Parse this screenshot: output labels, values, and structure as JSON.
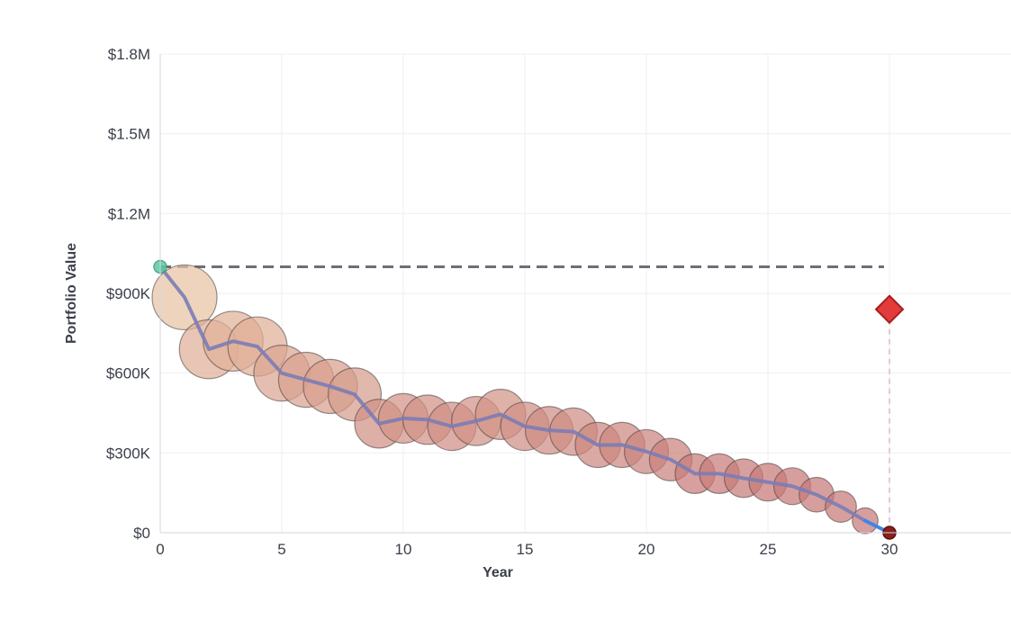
{
  "chart_data": {
    "type": "scatter",
    "title": "",
    "xlabel": "Year",
    "ylabel": "Portfolio Value",
    "xlim": [
      0,
      35
    ],
    "ylim": [
      0,
      1800000
    ],
    "grid": true,
    "x_ticks": [
      "0",
      "5",
      "10",
      "15",
      "20",
      "25",
      "30"
    ],
    "x_tick_values": [
      0,
      5,
      10,
      15,
      20,
      25,
      30
    ],
    "y_ticks": [
      "$0",
      "$300K",
      "$600K",
      "$900K",
      "$1.2M",
      "$1.5M",
      "$1.8M"
    ],
    "y_tick_values": [
      0,
      300000,
      600000,
      900000,
      1200000,
      1500000,
      1800000
    ],
    "reference_value": 1000000,
    "colors": {
      "line": "#7b7cb5",
      "line_end": "#3f86e6",
      "bubble_high": "#e9c3a3",
      "bubble_low": "#c67a78",
      "start_marker": "#5ccaa4",
      "end_marker": "#8b1e1e",
      "diamond": "#e23b3b",
      "reference": "#6b6f78",
      "drop_line": "#e4b6bf"
    },
    "series": [
      {
        "x": [
          1,
          2,
          3,
          4,
          5,
          6,
          7,
          8,
          9,
          10,
          11,
          12,
          13,
          14,
          15,
          16,
          17,
          18,
          19,
          20,
          21,
          22,
          23,
          24,
          25,
          26,
          27,
          28,
          29,
          30
        ],
        "y": [
          885000,
          690000,
          720000,
          700000,
          600000,
          575000,
          550000,
          520000,
          410000,
          430000,
          425000,
          400000,
          420000,
          445000,
          400000,
          385000,
          380000,
          330000,
          330000,
          305000,
          275000,
          222000,
          222000,
          205000,
          190000,
          175000,
          143000,
          98000,
          45000,
          0
        ],
        "size": [
          885000,
          690000,
          720000,
          700000,
          600000,
          575000,
          550000,
          520000,
          410000,
          430000,
          425000,
          400000,
          420000,
          445000,
          400000,
          385000,
          380000,
          330000,
          330000,
          305000,
          275000,
          222000,
          222000,
          205000,
          190000,
          175000,
          143000,
          98000,
          45000,
          0
        ]
      }
    ],
    "start_point": {
      "x": 0,
      "y": 1000000
    },
    "end_point": {
      "x": 30,
      "y": 0
    },
    "diamond_point": {
      "x": 30,
      "y": 840000
    }
  }
}
